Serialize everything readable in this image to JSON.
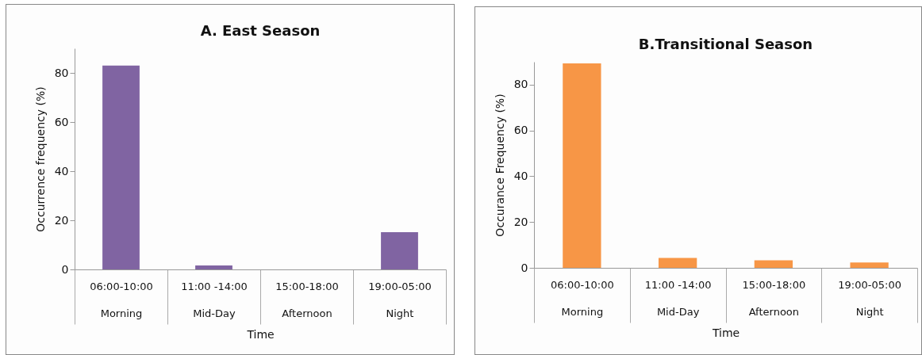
{
  "chart_data": [
    {
      "type": "bar",
      "title": "A. East Season",
      "xlabel": "Time",
      "ylabel": "Occurrence frequency (%)",
      "categories": [
        "06:00-10:00\nMorning",
        "11:00 -14:00\nMid-Day",
        "15:00-18:00\nAfternoon",
        "19:00-05:00\nNight"
      ],
      "values": [
        83,
        1.6,
        0,
        15.2
      ],
      "color": "#8064a2",
      "ylim": [
        0,
        90
      ],
      "yticks": [
        0,
        20,
        40,
        60,
        80
      ]
    },
    {
      "type": "bar",
      "title": "B.Transitional Season",
      "xlabel": "Time",
      "ylabel": "Occurance Frequency (%)",
      "categories": [
        "06:00-10:00\nMorning",
        "11:00 -14:00\nMid-Day",
        "15:00-18:00\nAfternoon",
        "19:00-05:00\nNight"
      ],
      "values": [
        89.3,
        4.3,
        3.3,
        2.3
      ],
      "color": "#f79646",
      "ylim": [
        0,
        90
      ],
      "yticks": [
        0,
        20,
        40,
        60,
        80
      ]
    }
  ]
}
